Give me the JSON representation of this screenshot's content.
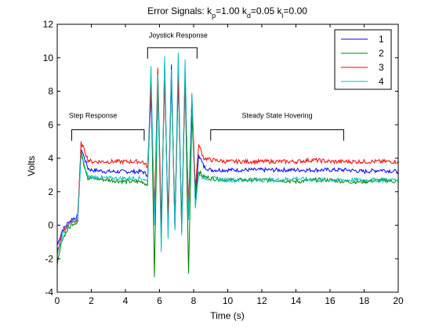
{
  "chart_data": {
    "type": "line",
    "title": {
      "prefix": "Error Signals: k",
      "kp_sub": "p",
      "kp_val": "=1.00 k",
      "kd_sub": "d",
      "kd_val": "=0.05 k",
      "ki_sub": "i",
      "ki_val": "=0.00"
    },
    "xlabel": "Time (s)",
    "ylabel": "Volts",
    "xlim": [
      0,
      20
    ],
    "ylim": [
      -4,
      12
    ],
    "xticks": [
      "0",
      "2",
      "4",
      "6",
      "8",
      "10",
      "12",
      "14",
      "16",
      "18",
      "20"
    ],
    "yticks": [
      "-4",
      "-2",
      "0",
      "2",
      "4",
      "6",
      "8",
      "10",
      "12"
    ],
    "grid": false,
    "legend_position": "top-right",
    "annotations": [
      {
        "text": "Step Response",
        "x": 2.1,
        "y": 6.4,
        "bracket": [
          0.85,
          5.1
        ],
        "bracket_y": 5.7
      },
      {
        "text": "Joystick Response",
        "x": 7.1,
        "y": 11.2,
        "bracket": [
          5.3,
          8.2
        ],
        "bracket_y": 10.6
      },
      {
        "text": "Steady State Hovering",
        "x": 12.9,
        "y": 6.4,
        "bracket": [
          9.0,
          16.8
        ],
        "bracket_y": 5.7
      }
    ],
    "series": [
      {
        "name": "1",
        "color": "#0000ff",
        "values": [
          [
            0,
            -1.2
          ],
          [
            0.3,
            -0.3
          ],
          [
            0.6,
            0.1
          ],
          [
            0.9,
            0.4
          ],
          [
            1.2,
            0.5
          ],
          [
            1.4,
            4.6
          ],
          [
            1.6,
            4.0
          ],
          [
            1.8,
            3.4
          ],
          [
            2.0,
            3.3
          ],
          [
            3.0,
            3.2
          ],
          [
            4.0,
            3.2
          ],
          [
            5.0,
            3.2
          ],
          [
            5.3,
            3.0
          ],
          [
            5.5,
            7.8
          ],
          [
            5.7,
            0.5
          ],
          [
            5.9,
            8.6
          ],
          [
            6.1,
            -0.5
          ],
          [
            6.3,
            9.2
          ],
          [
            6.5,
            0.0
          ],
          [
            6.7,
            9.6
          ],
          [
            6.9,
            -0.2
          ],
          [
            7.1,
            8.8
          ],
          [
            7.3,
            0.3
          ],
          [
            7.5,
            9.0
          ],
          [
            7.7,
            0.5
          ],
          [
            7.9,
            7.5
          ],
          [
            8.1,
            1.5
          ],
          [
            8.3,
            4.2
          ],
          [
            8.6,
            3.5
          ],
          [
            9,
            3.3
          ],
          [
            10,
            3.3
          ],
          [
            11,
            3.3
          ],
          [
            12,
            3.3
          ],
          [
            13,
            3.3
          ],
          [
            14,
            3.3
          ],
          [
            15,
            3.3
          ],
          [
            16,
            3.3
          ],
          [
            17,
            3.3
          ],
          [
            18,
            3.2
          ],
          [
            19,
            3.3
          ],
          [
            20,
            3.2
          ]
        ]
      },
      {
        "name": "2",
        "color": "#008000",
        "values": [
          [
            0,
            -2.4
          ],
          [
            0.3,
            -0.8
          ],
          [
            0.6,
            -0.3
          ],
          [
            0.9,
            0.1
          ],
          [
            1.2,
            0.2
          ],
          [
            1.4,
            4.5
          ],
          [
            1.6,
            3.6
          ],
          [
            1.8,
            2.8
          ],
          [
            2.0,
            2.8
          ],
          [
            3.0,
            2.7
          ],
          [
            4.0,
            2.6
          ],
          [
            5.0,
            2.6
          ],
          [
            5.3,
            2.4
          ],
          [
            5.5,
            9.0
          ],
          [
            5.7,
            -3.1
          ],
          [
            5.9,
            8.4
          ],
          [
            6.1,
            -0.6
          ],
          [
            6.3,
            9.8
          ],
          [
            6.5,
            -0.2
          ],
          [
            6.7,
            8.6
          ],
          [
            6.9,
            0.4
          ],
          [
            7.1,
            9.2
          ],
          [
            7.3,
            -0.3
          ],
          [
            7.5,
            9.0
          ],
          [
            7.7,
            -2.9
          ],
          [
            7.9,
            6.6
          ],
          [
            8.1,
            1.8
          ],
          [
            8.3,
            3.2
          ],
          [
            8.6,
            2.9
          ],
          [
            9,
            2.8
          ],
          [
            10,
            2.7
          ],
          [
            11,
            2.7
          ],
          [
            12,
            2.7
          ],
          [
            13,
            2.7
          ],
          [
            14,
            2.6
          ],
          [
            15,
            2.7
          ],
          [
            16,
            2.7
          ],
          [
            17,
            2.6
          ],
          [
            18,
            2.6
          ],
          [
            19,
            2.7
          ],
          [
            20,
            2.6
          ]
        ]
      },
      {
        "name": "3",
        "color": "#ff0000",
        "values": [
          [
            0,
            -1.6
          ],
          [
            0.3,
            -0.5
          ],
          [
            0.6,
            0.0
          ],
          [
            0.9,
            0.2
          ],
          [
            1.2,
            0.3
          ],
          [
            1.4,
            4.9
          ],
          [
            1.6,
            4.5
          ],
          [
            1.8,
            3.9
          ],
          [
            2.0,
            3.8
          ],
          [
            3.0,
            3.8
          ],
          [
            4.0,
            3.8
          ],
          [
            5.0,
            3.8
          ],
          [
            5.3,
            3.5
          ],
          [
            5.5,
            8.2
          ],
          [
            5.7,
            0.8
          ],
          [
            5.9,
            9.4
          ],
          [
            6.1,
            0.2
          ],
          [
            6.3,
            8.7
          ],
          [
            6.5,
            0.5
          ],
          [
            6.7,
            8.9
          ],
          [
            6.9,
            -0.2
          ],
          [
            7.1,
            9.0
          ],
          [
            7.3,
            -0.4
          ],
          [
            7.5,
            8.6
          ],
          [
            7.7,
            1.2
          ],
          [
            7.9,
            7.8
          ],
          [
            8.1,
            2.2
          ],
          [
            8.3,
            4.8
          ],
          [
            8.6,
            4.0
          ],
          [
            9,
            3.9
          ],
          [
            10,
            3.8
          ],
          [
            11,
            3.8
          ],
          [
            12,
            3.8
          ],
          [
            13,
            3.8
          ],
          [
            14,
            3.8
          ],
          [
            15,
            3.9
          ],
          [
            16,
            3.8
          ],
          [
            17,
            3.8
          ],
          [
            18,
            3.8
          ],
          [
            19,
            3.8
          ],
          [
            20,
            3.8
          ]
        ]
      },
      {
        "name": "4",
        "color": "#00bfbf",
        "values": [
          [
            0,
            -1.8
          ],
          [
            0.3,
            -0.6
          ],
          [
            0.6,
            -0.1
          ],
          [
            0.9,
            0.2
          ],
          [
            1.2,
            0.3
          ],
          [
            1.4,
            4.2
          ],
          [
            1.6,
            3.4
          ],
          [
            1.8,
            2.9
          ],
          [
            2.0,
            2.9
          ],
          [
            3.0,
            2.8
          ],
          [
            4.0,
            2.8
          ],
          [
            5.0,
            2.8
          ],
          [
            5.3,
            2.6
          ],
          [
            5.5,
            9.5
          ],
          [
            5.7,
            0.0
          ],
          [
            5.9,
            9.0
          ],
          [
            6.1,
            -1.6
          ],
          [
            6.3,
            10.1
          ],
          [
            6.5,
            -0.8
          ],
          [
            6.7,
            9.3
          ],
          [
            6.9,
            -0.3
          ],
          [
            7.1,
            10.3
          ],
          [
            7.3,
            -0.6
          ],
          [
            7.5,
            9.9
          ],
          [
            7.7,
            0.3
          ],
          [
            7.9,
            7.9
          ],
          [
            8.1,
            1.0
          ],
          [
            8.3,
            3.1
          ],
          [
            8.6,
            2.8
          ],
          [
            9,
            2.8
          ],
          [
            10,
            2.7
          ],
          [
            11,
            2.7
          ],
          [
            12,
            2.7
          ],
          [
            13,
            2.7
          ],
          [
            14,
            2.8
          ],
          [
            15,
            2.7
          ],
          [
            16,
            2.7
          ],
          [
            17,
            2.7
          ],
          [
            18,
            2.7
          ],
          [
            19,
            2.7
          ],
          [
            20,
            2.7
          ]
        ]
      }
    ]
  }
}
